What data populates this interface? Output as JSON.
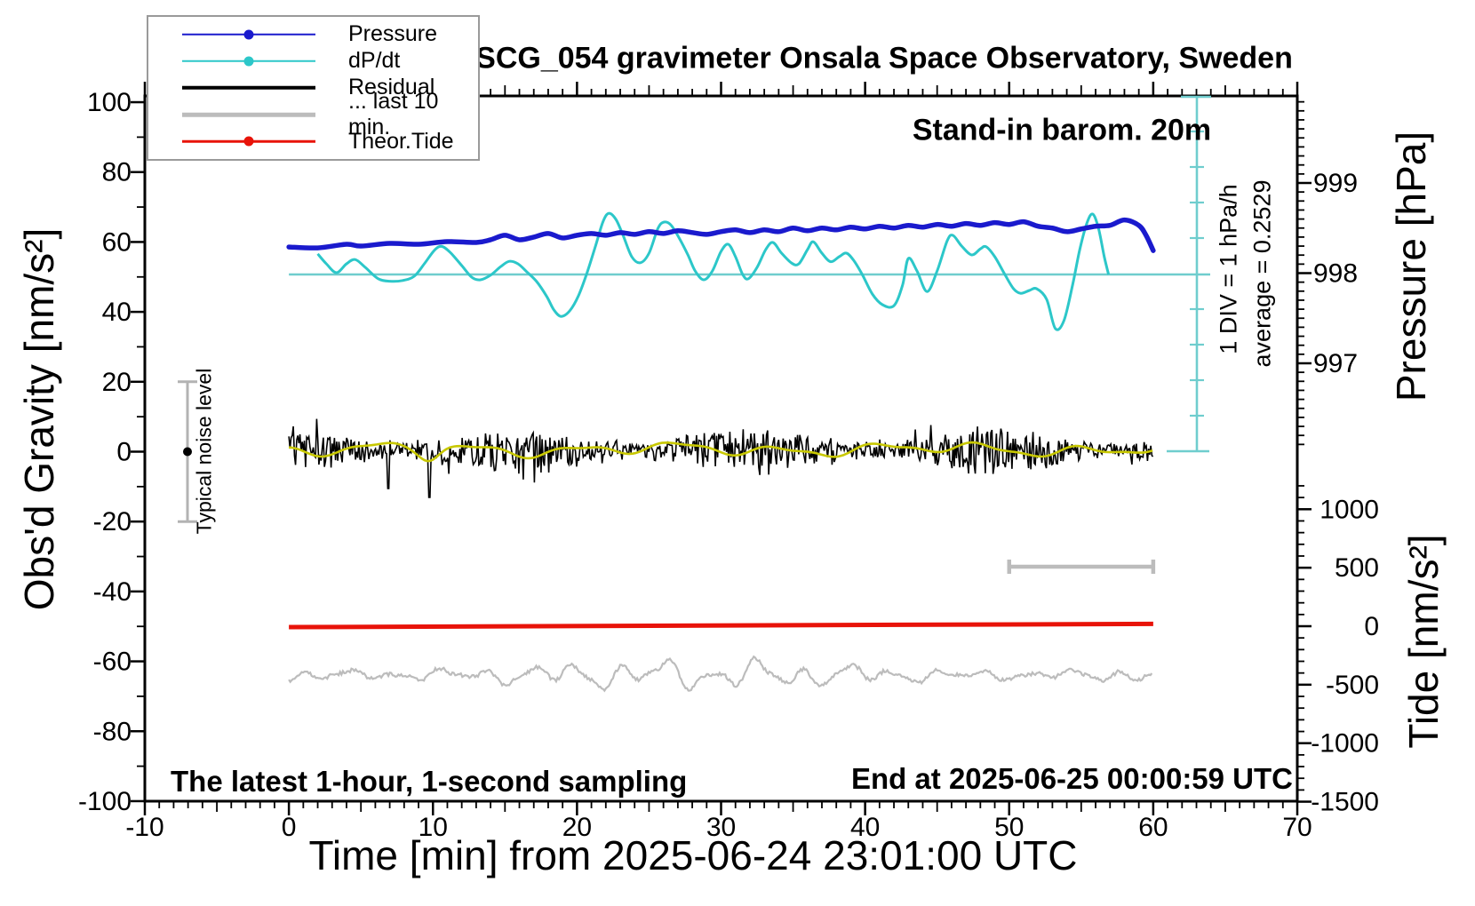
{
  "title": "SCG_054 gravimeter Onsala Space Observatory, Sweden",
  "colors": {
    "pressure_blue": "#1a1acd",
    "dpdt_cyan": "#2cc7c9",
    "reference_cyan": "#6fcdce",
    "residual_black": "#000000",
    "last10_gray": "#bcbcbc",
    "tide_red": "#e81309",
    "smoothed_yellow": "#c8c800",
    "noisebar_gray": "#b3b3b3",
    "axis_black": "#000000"
  },
  "legend": {
    "items": [
      {
        "label": "Pressure",
        "color": "#1a1acd",
        "marker": true,
        "line_width": 2.5
      },
      {
        "label": "dP/dt",
        "color": "#2cc7c9",
        "marker": true,
        "line_width": 2.5
      },
      {
        "label": "Residual",
        "color": "#000000",
        "marker": false,
        "line_width": 4.5
      },
      {
        "label": "... last 10 min.",
        "color": "#bcbcbc",
        "marker": false,
        "line_width": 4.5
      },
      {
        "label": "Theor.Tide",
        "color": "#e81309",
        "marker": true,
        "line_width": 2.5
      }
    ]
  },
  "annotations": {
    "barometer_note": "Stand-in barom. 20m",
    "div_note": "1 DIV = 1 hPa/h",
    "average_note": "average = 0.2529",
    "noise_label": "Typical noise level",
    "sampling_note": "The latest 1-hour, 1-second sampling",
    "end_note": "End at 2025-06-25 00:00:59 UTC"
  },
  "axes": {
    "x": {
      "label": "Time [min] from 2025-06-24 23:01:00 UTC",
      "range": [
        -10,
        70
      ],
      "major_ticks": [
        -10,
        0,
        10,
        20,
        30,
        40,
        50,
        60,
        70
      ],
      "minor_step_min": 1
    },
    "y_left": {
      "label": "Obs'd Gravity [nm/s²]",
      "range": [
        -100,
        100
      ],
      "major_ticks": [
        100,
        80,
        60,
        40,
        20,
        0,
        -20,
        -40,
        -60,
        -80,
        -100
      ],
      "minor_step": 10
    },
    "y_right_pressure": {
      "label": "Pressure [hPa]",
      "range": [
        996,
        1000
      ],
      "major_ticks": [
        999,
        998,
        997
      ],
      "minor_step": 0.1
    },
    "y_right_tide": {
      "label": "Tide [nm/s²]",
      "range": [
        -1500,
        1250
      ],
      "major_ticks": [
        1000,
        500,
        0,
        -500,
        -1000,
        -1500
      ],
      "minor_step": 100
    }
  },
  "chart_data": {
    "type": "line",
    "title": "SCG_054 gravimeter Onsala Space Observatory, Sweden",
    "xlabel": "Time [min] from 2025-06-24 23:01:00 UTC",
    "x_range_min": [
      -10,
      70
    ],
    "grid": false,
    "legend_position": "upper-left",
    "reference_line": {
      "description": "dP/dt zero line, drawn at pressure 998 hPa / gravity +50 nm/s2",
      "pressure_hpa": 998
    },
    "ruler": {
      "description": "vertical cyan scale, 10 divisions",
      "label": "1 DIV = 1 hPa/h",
      "divisions": 10
    },
    "noise_bar": {
      "description": "Typical noise level error bar at t = -7 min",
      "center_nms2": 0,
      "halfwidth_nms2": 20
    },
    "scale_bar": {
      "description": "gray horizontal bar marking last 10 min",
      "t_start": 50,
      "t_end": 60,
      "gravity_level_nms2": -33
    },
    "series": [
      {
        "name": "Pressure",
        "unit": "hPa",
        "axis": "pressure",
        "points": [
          [
            0,
            998.29
          ],
          [
            2,
            998.28
          ],
          [
            4,
            998.32
          ],
          [
            5,
            998.3
          ],
          [
            7,
            998.33
          ],
          [
            9,
            998.32
          ],
          [
            11,
            998.35
          ],
          [
            13,
            998.34
          ],
          [
            14,
            998.37
          ],
          [
            15,
            998.42
          ],
          [
            16,
            998.37
          ],
          [
            17,
            998.4
          ],
          [
            18,
            998.44
          ],
          [
            19,
            998.39
          ],
          [
            20,
            998.42
          ],
          [
            21,
            998.44
          ],
          [
            22,
            998.42
          ],
          [
            23,
            998.45
          ],
          [
            24,
            998.43
          ],
          [
            25,
            998.46
          ],
          [
            26,
            998.44
          ],
          [
            27,
            998.47
          ],
          [
            28,
            998.45
          ],
          [
            29,
            998.43
          ],
          [
            30,
            998.46
          ],
          [
            31,
            998.48
          ],
          [
            32,
            998.45
          ],
          [
            33,
            998.48
          ],
          [
            34,
            998.46
          ],
          [
            35,
            998.5
          ],
          [
            36,
            998.47
          ],
          [
            37,
            998.5
          ],
          [
            38,
            998.48
          ],
          [
            39,
            998.51
          ],
          [
            40,
            998.49
          ],
          [
            41,
            998.52
          ],
          [
            42,
            998.5
          ],
          [
            43,
            998.53
          ],
          [
            44,
            998.51
          ],
          [
            45,
            998.54
          ],
          [
            46,
            998.52
          ],
          [
            47,
            998.55
          ],
          [
            48,
            998.53
          ],
          [
            49,
            998.56
          ],
          [
            50,
            998.54
          ],
          [
            51,
            998.57
          ],
          [
            52,
            998.52
          ],
          [
            53,
            998.5
          ],
          [
            54,
            998.46
          ],
          [
            55,
            998.49
          ],
          [
            56,
            998.52
          ],
          [
            57,
            998.53
          ],
          [
            58,
            998.59
          ],
          [
            59,
            998.53
          ],
          [
            59.5,
            998.42
          ],
          [
            60,
            998.25
          ]
        ]
      },
      {
        "name": "dP/dt",
        "unit": "hPa/h",
        "axis": "ruler",
        "points": [
          [
            2.0,
            0.58
          ],
          [
            2.6,
            0.3
          ],
          [
            3.3,
            0.05
          ],
          [
            4.0,
            0.3
          ],
          [
            4.6,
            0.42
          ],
          [
            5.3,
            0.2
          ],
          [
            6.2,
            -0.12
          ],
          [
            7.0,
            -0.19
          ],
          [
            7.9,
            -0.17
          ],
          [
            8.7,
            -0.05
          ],
          [
            9.4,
            0.3
          ],
          [
            10.1,
            0.68
          ],
          [
            10.6,
            0.79
          ],
          [
            11.2,
            0.62
          ],
          [
            12.0,
            0.25
          ],
          [
            12.7,
            -0.08
          ],
          [
            13.3,
            -0.15
          ],
          [
            14.0,
            -0.02
          ],
          [
            14.7,
            0.22
          ],
          [
            15.3,
            0.37
          ],
          [
            15.9,
            0.3
          ],
          [
            16.5,
            0.08
          ],
          [
            17.2,
            -0.2
          ],
          [
            17.9,
            -0.62
          ],
          [
            18.4,
            -1.0
          ],
          [
            18.9,
            -1.18
          ],
          [
            19.5,
            -1.02
          ],
          [
            20.1,
            -0.6
          ],
          [
            20.7,
            0.05
          ],
          [
            21.3,
            0.82
          ],
          [
            21.8,
            1.48
          ],
          [
            22.2,
            1.72
          ],
          [
            22.7,
            1.55
          ],
          [
            23.2,
            1.1
          ],
          [
            23.8,
            0.5
          ],
          [
            24.4,
            0.33
          ],
          [
            25.0,
            0.6
          ],
          [
            25.6,
            1.28
          ],
          [
            26.0,
            1.47
          ],
          [
            26.5,
            1.4
          ],
          [
            27.1,
            1.02
          ],
          [
            27.7,
            0.55
          ],
          [
            28.2,
            0.1
          ],
          [
            28.8,
            -0.15
          ],
          [
            29.4,
            0.1
          ],
          [
            30.0,
            0.65
          ],
          [
            30.5,
            0.85
          ],
          [
            31.0,
            0.5
          ],
          [
            31.5,
            0.0
          ],
          [
            31.9,
            -0.12
          ],
          [
            32.5,
            0.2
          ],
          [
            33.1,
            0.7
          ],
          [
            33.6,
            0.9
          ],
          [
            34.2,
            0.6
          ],
          [
            34.9,
            0.32
          ],
          [
            35.4,
            0.3
          ],
          [
            36.0,
            0.7
          ],
          [
            36.4,
            0.92
          ],
          [
            37.0,
            0.6
          ],
          [
            37.6,
            0.36
          ],
          [
            38.2,
            0.5
          ],
          [
            38.7,
            0.6
          ],
          [
            39.2,
            0.4
          ],
          [
            39.8,
            0.0
          ],
          [
            40.5,
            -0.55
          ],
          [
            41.2,
            -0.85
          ],
          [
            42.0,
            -0.88
          ],
          [
            42.6,
            -0.3
          ],
          [
            43.0,
            0.45
          ],
          [
            43.6,
            0.1
          ],
          [
            44.3,
            -0.48
          ],
          [
            45.0,
            0.1
          ],
          [
            45.7,
            0.95
          ],
          [
            46.1,
            1.1
          ],
          [
            46.7,
            0.8
          ],
          [
            47.4,
            0.55
          ],
          [
            48.0,
            0.72
          ],
          [
            48.4,
            0.78
          ],
          [
            49.0,
            0.5
          ],
          [
            49.7,
            0.0
          ],
          [
            50.3,
            -0.4
          ],
          [
            50.8,
            -0.53
          ],
          [
            51.4,
            -0.45
          ],
          [
            51.9,
            -0.4
          ],
          [
            52.6,
            -0.7
          ],
          [
            53.2,
            -1.52
          ],
          [
            53.8,
            -1.3
          ],
          [
            54.4,
            -0.3
          ],
          [
            54.9,
            0.7
          ],
          [
            55.4,
            1.45
          ],
          [
            55.8,
            1.7
          ],
          [
            56.2,
            1.3
          ],
          [
            56.6,
            0.5
          ],
          [
            56.9,
            0.0
          ]
        ]
      },
      {
        "name": "Residual",
        "unit": "nm/s²",
        "axis": "gravity",
        "t_range": [
          0,
          60
        ],
        "mean": 0,
        "typical_amplitude": 5,
        "max_down_spike": -13.5,
        "max_up_spike": 10,
        "big_spikes_t": [
          9.7,
          6.9
        ]
      },
      {
        "name": "... last 10 min.",
        "unit": "nm/s²",
        "axis": "gravity",
        "t_range": [
          0,
          60
        ],
        "display_offset_nms2": -64,
        "amplitude_nms2": 4
      },
      {
        "name": "Theor.Tide",
        "unit": "nm/s²",
        "axis": "tide",
        "points": [
          [
            0,
            -8
          ],
          [
            60,
            20
          ]
        ]
      },
      {
        "name": "smoothed residual (yellow)",
        "unit": "nm/s²",
        "axis": "gravity",
        "t_range": [
          0,
          60
        ],
        "mean": 0,
        "amplitude_nms2": 1.5
      }
    ]
  }
}
